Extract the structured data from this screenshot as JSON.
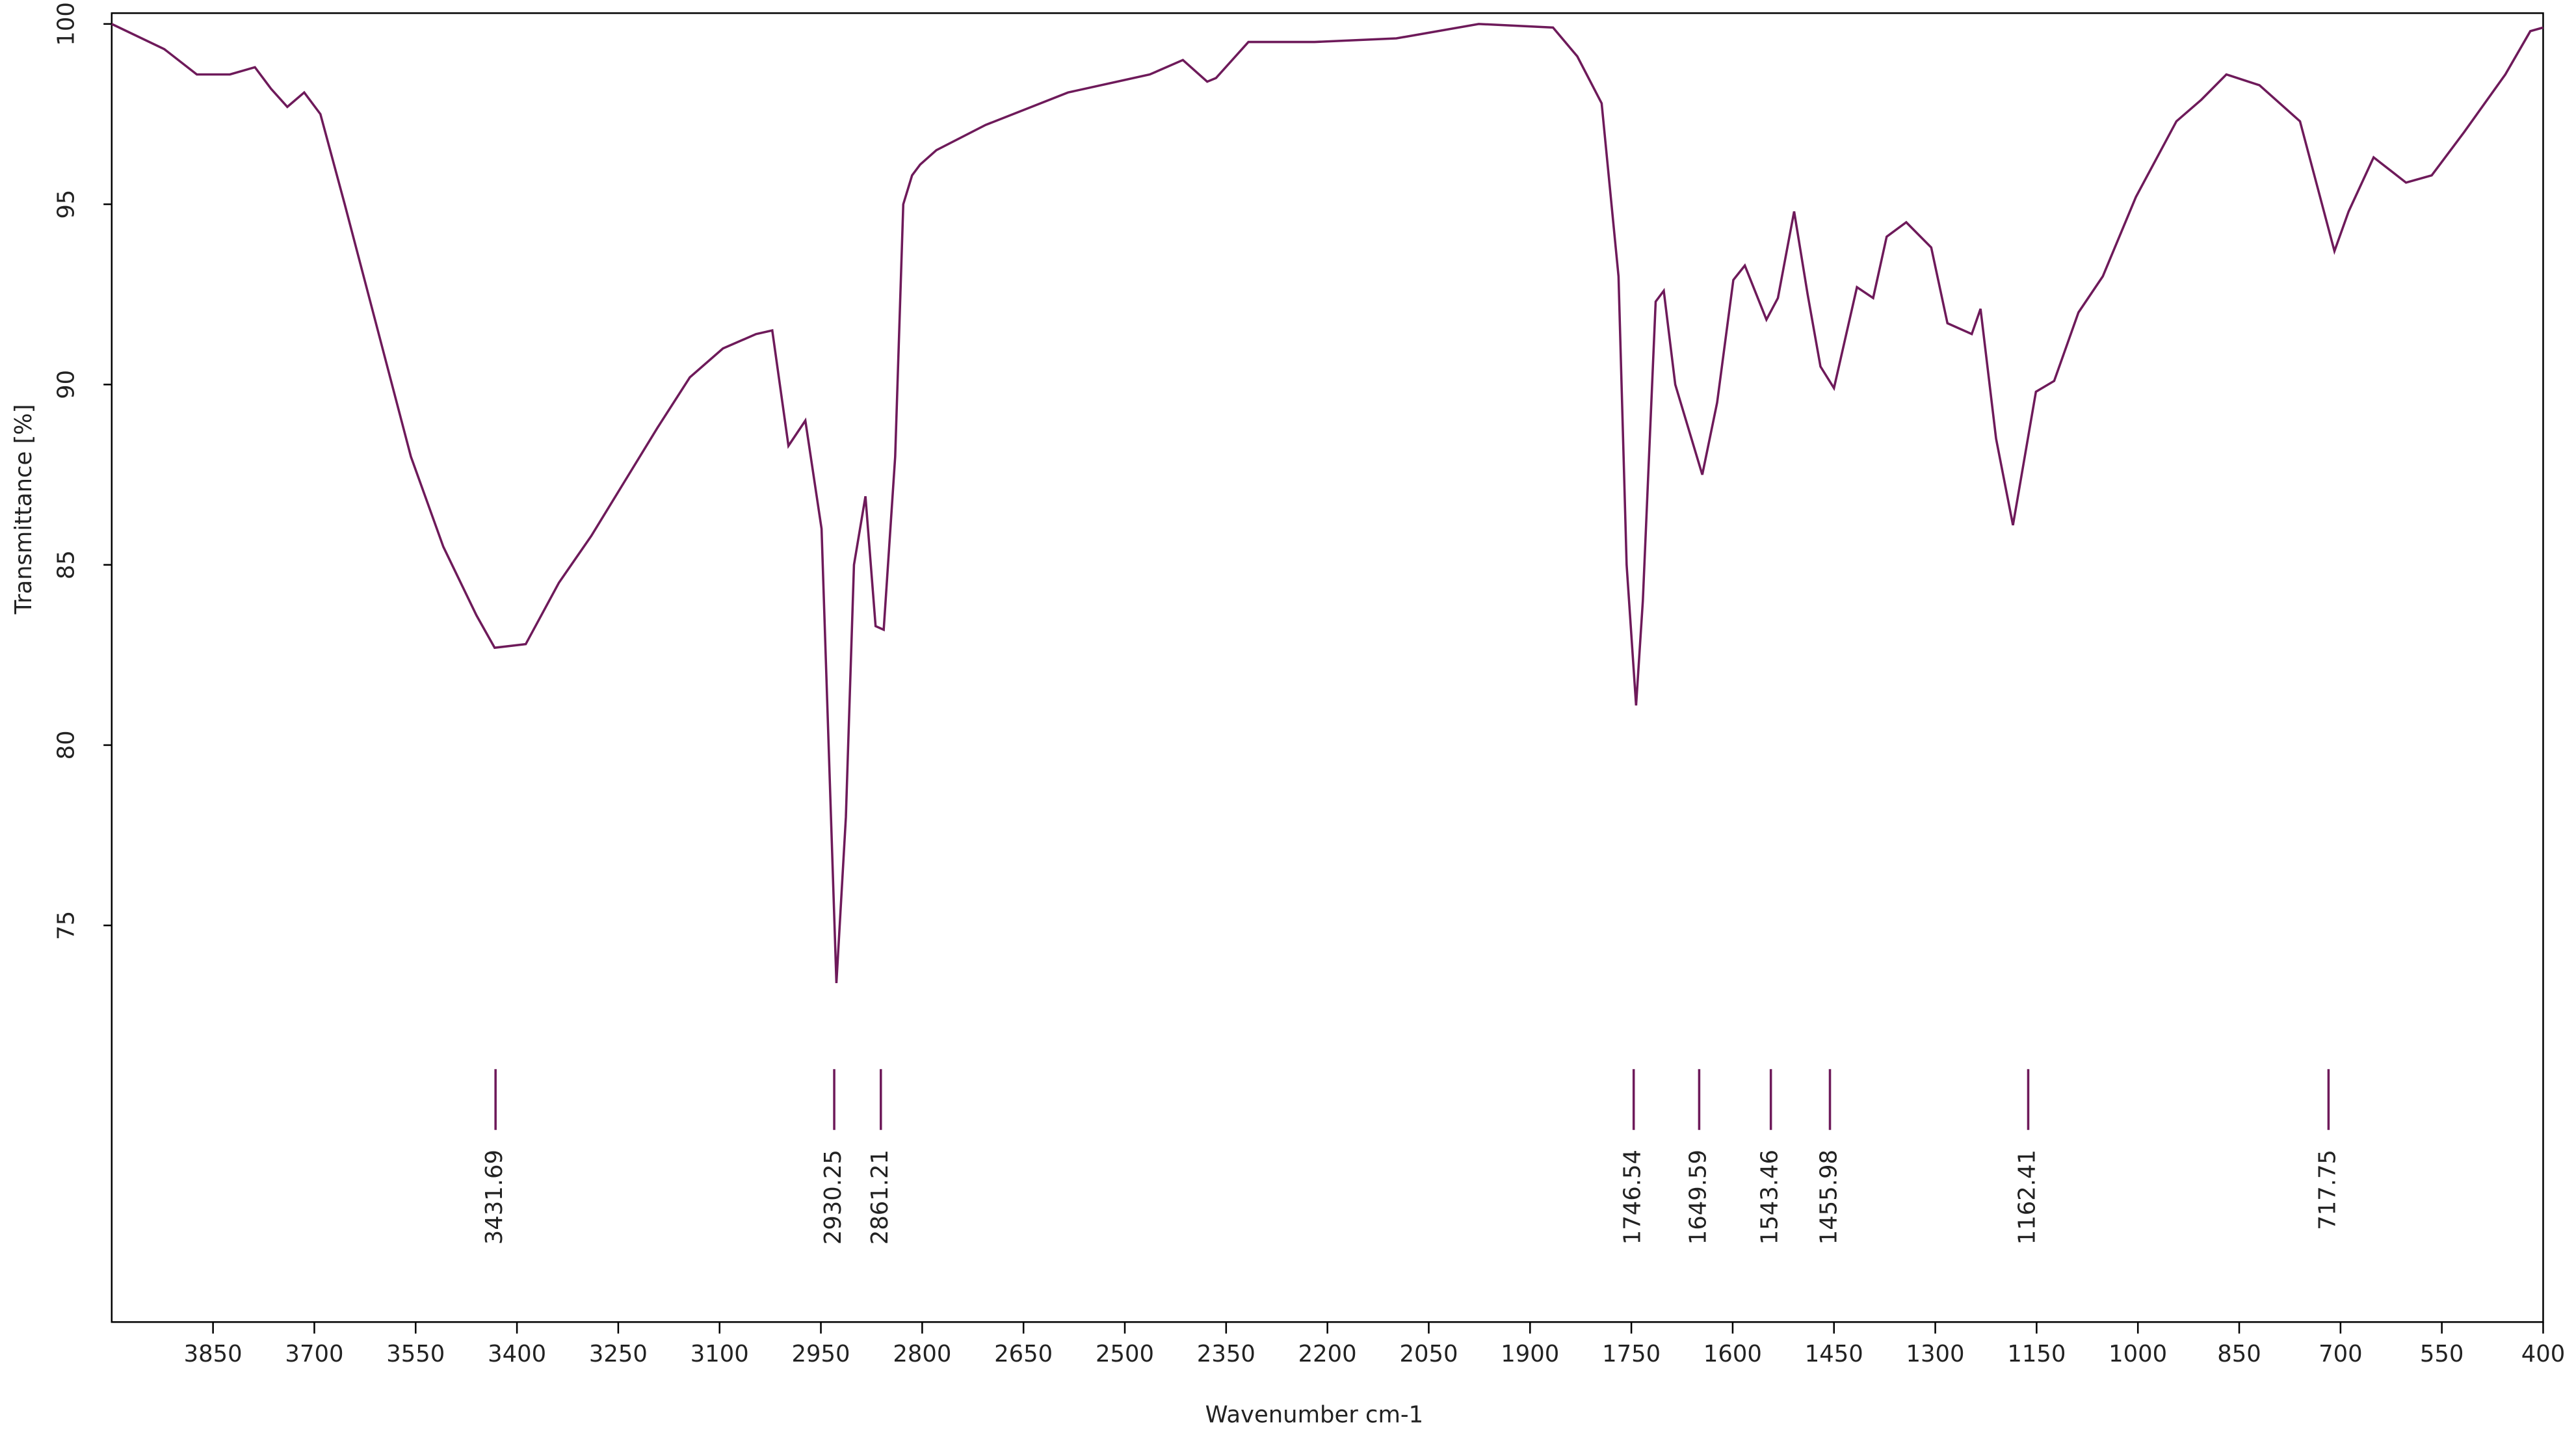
{
  "chart_data": {
    "type": "line",
    "x_label": "Wavenumber cm-1",
    "y_label": "Transmittance [%]",
    "color": "#6e1a5a",
    "x": [
      4000,
      3922,
      3874,
      3825,
      3788,
      3764,
      3740,
      3715,
      3691,
      3655,
      3606,
      3557,
      3509,
      3460,
      3433,
      3387,
      3338,
      3290,
      3241,
      3192,
      3144,
      3095,
      3046,
      3022,
      2998,
      2973,
      2949,
      2927,
      2913,
      2901,
      2884,
      2869,
      2857,
      2840,
      2828,
      2815,
      2803,
      2779,
      2706,
      2584,
      2463,
      2414,
      2378,
      2365,
      2317,
      2219,
      2098,
      1976,
      1866,
      1830,
      1794,
      1769,
      1757,
      1743,
      1733,
      1714,
      1702,
      1685,
      1645,
      1623,
      1599,
      1582,
      1550,
      1533,
      1509,
      1489,
      1470,
      1450,
      1416,
      1392,
      1372,
      1343,
      1306,
      1282,
      1246,
      1233,
      1210,
      1185,
      1151,
      1124,
      1088,
      1052,
      1003,
      943,
      906,
      869,
      820,
      760,
      709,
      688,
      651,
      603,
      565,
      517,
      456,
      419,
      400
    ],
    "values": [
      100,
      99.3,
      98.6,
      98.6,
      98.8,
      98.2,
      97.7,
      98.1,
      97.5,
      95.0,
      91.5,
      88.0,
      85.5,
      83.6,
      82.7,
      82.8,
      84.5,
      85.8,
      87.3,
      88.8,
      90.2,
      91.0,
      91.4,
      91.5,
      88.3,
      89.0,
      86.0,
      73.4,
      78.0,
      85.0,
      86.9,
      83.3,
      83.2,
      88.0,
      95.0,
      95.8,
      96.1,
      96.5,
      97.2,
      98.1,
      98.6,
      99.0,
      98.4,
      98.5,
      99.5,
      99.5,
      99.6,
      100.0,
      99.9,
      99.1,
      97.8,
      93.0,
      85.0,
      81.1,
      84.0,
      92.3,
      92.6,
      90.0,
      87.5,
      89.5,
      92.9,
      93.3,
      91.8,
      92.4,
      94.8,
      92.5,
      90.5,
      89.9,
      92.7,
      92.4,
      94.1,
      94.5,
      93.8,
      91.7,
      91.4,
      92.1,
      88.5,
      86.1,
      89.8,
      90.1,
      92.0,
      93.0,
      95.2,
      97.3,
      97.9,
      98.6,
      98.3,
      97.3,
      93.7,
      94.8,
      96.3,
      95.6,
      95.8,
      97.0,
      98.6,
      99.8,
      99.9
    ],
    "xlim": [
      4000,
      400
    ],
    "xticks": [
      3850,
      3700,
      3550,
      3400,
      3250,
      3100,
      2950,
      2800,
      2650,
      2500,
      2350,
      2200,
      2050,
      1900,
      1750,
      1600,
      1450,
      1300,
      1150,
      1000,
      850,
      700,
      550,
      400
    ],
    "ylim": [
      64,
      100.3
    ],
    "yticks": [
      75,
      80,
      85,
      90,
      95,
      100
    ],
    "peaks": [
      3431.69,
      2930.25,
      2861.21,
      1746.54,
      1649.59,
      1543.46,
      1455.98,
      1162.41,
      717.75
    ]
  }
}
